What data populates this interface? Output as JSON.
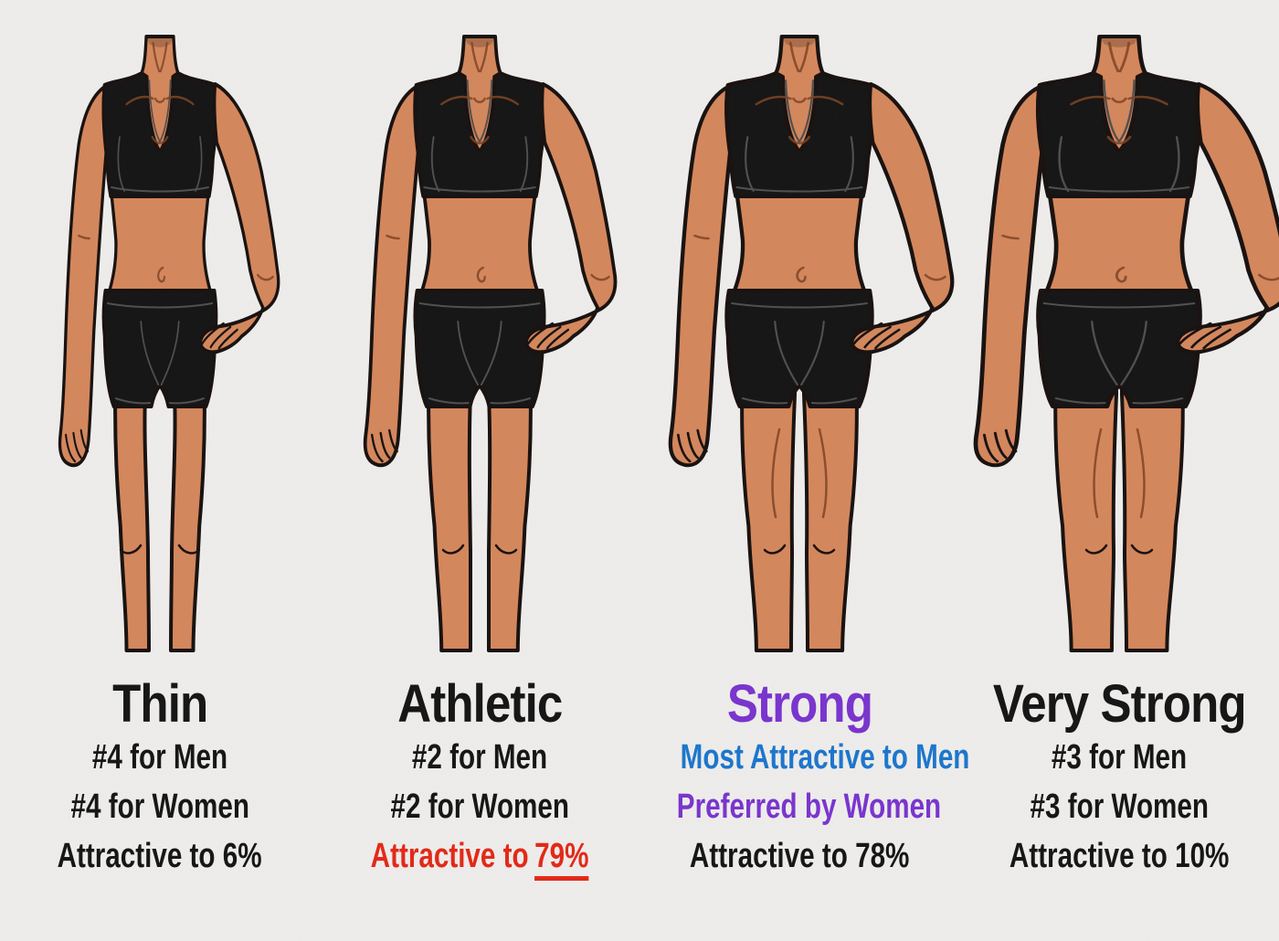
{
  "style": {
    "background": "#efeeec",
    "skin": "#d5875c",
    "skin_line": "#7e4323",
    "outline": "#17100e",
    "outfit": "#141414",
    "outfit_line": "#4f4f4f"
  },
  "figures": [
    {
      "name": "thin",
      "scale_x": 0.83,
      "leg_gaps": [
        16,
        13,
        12
      ],
      "muscle_lines": false
    },
    {
      "name": "athletic",
      "scale_x": 0.95,
      "leg_gaps": [
        10,
        10,
        10
      ],
      "muscle_lines": false
    },
    {
      "name": "strong",
      "scale_x": 1.07,
      "leg_gaps": [
        5,
        8,
        9
      ],
      "muscle_lines": true
    },
    {
      "name": "very-strong",
      "scale_x": 1.19,
      "leg_gaps": [
        3,
        6,
        8
      ],
      "muscle_lines": true
    }
  ],
  "columns": [
    {
      "title": "Thin",
      "title_color": "#141414",
      "rows": [
        {
          "text": "#4 for Men",
          "color": "#141414"
        },
        {
          "text": "#4 for Women",
          "color": "#141414"
        },
        {
          "text": "Attractive to 6%",
          "color": "#141414"
        }
      ]
    },
    {
      "title": "Athletic",
      "title_color": "#141414",
      "rows": [
        {
          "text": "#2 for Men",
          "color": "#141414"
        },
        {
          "text": "#2 for Women",
          "color": "#141414"
        },
        {
          "text": "Attractive to",
          "emph": "79%",
          "emph_underline": true,
          "color": "#e52715"
        }
      ]
    },
    {
      "title": "Strong",
      "title_color": "#7a33cf",
      "rows": [
        {
          "text": "Most Attractive to Men",
          "color": "#1b76cd"
        },
        {
          "text": "Preferred by Women",
          "color": "#7a33cf"
        },
        {
          "text": "Attractive to 78%",
          "color": "#141414"
        }
      ]
    },
    {
      "title": "Very Strong",
      "title_color": "#141414",
      "rows": [
        {
          "text": "#3 for Men",
          "color": "#141414"
        },
        {
          "text": "#3 for Women",
          "color": "#141414"
        },
        {
          "text": "Attractive to 10%",
          "color": "#141414"
        }
      ]
    }
  ]
}
